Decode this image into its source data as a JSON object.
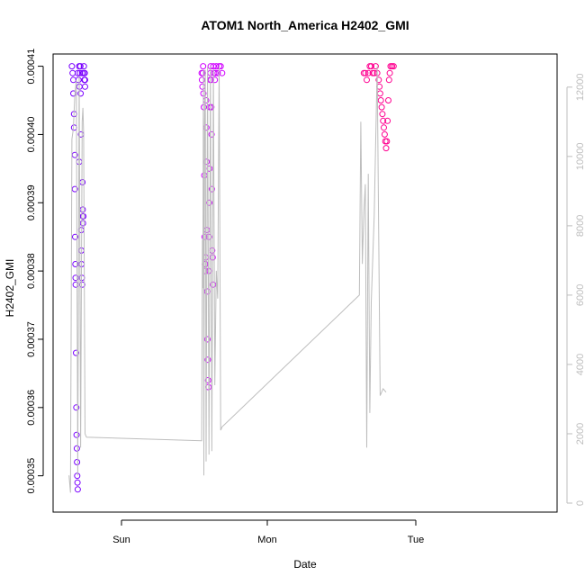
{
  "chart_data": {
    "type": "scatter",
    "title": "ATOM1 North_America H2402_GMI",
    "xlabel": "Date",
    "ylabel": "H2402_GMI",
    "x_ticks": [
      "Sun",
      "Mon",
      "Tue"
    ],
    "y_left": {
      "range": [
        0.000346,
        0.000411
      ],
      "ticks": [
        0.00035,
        0.00036,
        0.00037,
        0.00038,
        0.00039,
        0.0004,
        0.00041
      ],
      "tick_labels": [
        "0.00035",
        "0.00036",
        "0.00037",
        "0.00038",
        "0.00039",
        "0.00040",
        "0.00041"
      ]
    },
    "y_right": {
      "range": [
        0,
        12800
      ],
      "ticks": [
        0,
        2000,
        4000,
        6000,
        8000,
        10000,
        12000
      ],
      "tick_labels": [
        "0",
        "2000",
        "4000",
        "6000",
        "8000",
        "10000",
        "12000"
      ]
    },
    "grid": false,
    "marker_colors": [
      "#7a00ff",
      "#d000ff",
      "#ff0090"
    ],
    "line_color": "#bdbdbd",
    "scatter_points": [
      [
        -0.34,
        0.00041
      ],
      [
        -0.335,
        0.000409
      ],
      [
        -0.33,
        0.000408
      ],
      [
        -0.33,
        0.000406
      ],
      [
        -0.325,
        0.000403
      ],
      [
        -0.325,
        0.000401
      ],
      [
        -0.32,
        0.000397
      ],
      [
        -0.32,
        0.000392
      ],
      [
        -0.318,
        0.000385
      ],
      [
        -0.316,
        0.000381
      ],
      [
        -0.315,
        0.000379
      ],
      [
        -0.314,
        0.000378
      ],
      [
        -0.312,
        0.000368
      ],
      [
        -0.31,
        0.00036
      ],
      [
        -0.308,
        0.000356
      ],
      [
        -0.306,
        0.000354
      ],
      [
        -0.305,
        0.000352
      ],
      [
        -0.304,
        0.00035
      ],
      [
        -0.302,
        0.000349
      ],
      [
        -0.3,
        0.000348
      ],
      [
        -0.3,
        0.000409
      ],
      [
        -0.295,
        0.000408
      ],
      [
        -0.29,
        0.00041
      ],
      [
        -0.29,
        0.000396
      ],
      [
        -0.288,
        0.000407
      ],
      [
        -0.285,
        0.000409
      ],
      [
        -0.282,
        0.00041
      ],
      [
        -0.28,
        0.000406
      ],
      [
        -0.278,
        0.0004
      ],
      [
        -0.276,
        0.000386
      ],
      [
        -0.275,
        0.000383
      ],
      [
        -0.274,
        0.000381
      ],
      [
        -0.272,
        0.000379
      ],
      [
        -0.27,
        0.000378
      ],
      [
        -0.27,
        0.000409
      ],
      [
        -0.268,
        0.000393
      ],
      [
        -0.266,
        0.000389
      ],
      [
        -0.265,
        0.000388
      ],
      [
        -0.264,
        0.000387
      ],
      [
        -0.262,
        0.000388
      ],
      [
        -0.26,
        0.000409
      ],
      [
        -0.258,
        0.00041
      ],
      [
        -0.255,
        0.000408
      ],
      [
        -0.252,
        0.000409
      ],
      [
        -0.25,
        0.000408
      ],
      [
        -0.25,
        0.000407
      ],
      [
        0.55,
        0.000409
      ],
      [
        0.552,
        0.000408
      ],
      [
        0.555,
        0.000407
      ],
      [
        0.558,
        0.000409
      ],
      [
        0.56,
        0.00041
      ],
      [
        0.562,
        0.000406
      ],
      [
        0.565,
        0.000404
      ],
      [
        0.568,
        0.000394
      ],
      [
        0.57,
        0.000385
      ],
      [
        0.572,
        0.000381
      ],
      [
        0.574,
        0.00038
      ],
      [
        0.576,
        0.000381
      ],
      [
        0.578,
        0.000382
      ],
      [
        0.58,
        0.000405
      ],
      [
        0.582,
        0.000401
      ],
      [
        0.584,
        0.000396
      ],
      [
        0.586,
        0.000386
      ],
      [
        0.588,
        0.000377
      ],
      [
        0.59,
        0.00037
      ],
      [
        0.592,
        0.000367
      ],
      [
        0.594,
        0.000364
      ],
      [
        0.596,
        0.000363
      ],
      [
        0.598,
        0.00038
      ],
      [
        0.6,
        0.000385
      ],
      [
        0.602,
        0.00039
      ],
      [
        0.604,
        0.000395
      ],
      [
        0.606,
        0.000404
      ],
      [
        0.608,
        0.000408
      ],
      [
        0.61,
        0.000409
      ],
      [
        0.612,
        0.00041
      ],
      [
        0.614,
        0.000408
      ],
      [
        0.616,
        0.000404
      ],
      [
        0.618,
        0.0004
      ],
      [
        0.62,
        0.000392
      ],
      [
        0.622,
        0.000383
      ],
      [
        0.625,
        0.000382
      ],
      [
        0.628,
        0.000378
      ],
      [
        0.63,
        0.00041
      ],
      [
        0.635,
        0.000409
      ],
      [
        0.64,
        0.000408
      ],
      [
        0.645,
        0.000409
      ],
      [
        0.65,
        0.00041
      ],
      [
        0.66,
        0.000409
      ],
      [
        0.67,
        0.00041
      ],
      [
        0.68,
        0.00041
      ],
      [
        0.69,
        0.000409
      ],
      [
        1.65,
        0.000409
      ],
      [
        1.66,
        0.000409
      ],
      [
        1.67,
        0.000408
      ],
      [
        1.68,
        0.000409
      ],
      [
        1.69,
        0.00041
      ],
      [
        1.7,
        0.00041
      ],
      [
        1.71,
        0.000409
      ],
      [
        1.72,
        0.000409
      ],
      [
        1.73,
        0.00041
      ],
      [
        1.74,
        0.000409
      ],
      [
        1.75,
        0.000408
      ],
      [
        1.755,
        0.000407
      ],
      [
        1.76,
        0.000406
      ],
      [
        1.765,
        0.000405
      ],
      [
        1.77,
        0.000404
      ],
      [
        1.775,
        0.000403
      ],
      [
        1.78,
        0.000402
      ],
      [
        1.785,
        0.000401
      ],
      [
        1.79,
        0.0004
      ],
      [
        1.795,
        0.000399
      ],
      [
        1.8,
        0.000398
      ],
      [
        1.805,
        0.000399
      ],
      [
        1.81,
        0.000402
      ],
      [
        1.815,
        0.000405
      ],
      [
        1.82,
        0.000408
      ],
      [
        1.825,
        0.000409
      ],
      [
        1.83,
        0.00041
      ],
      [
        1.84,
        0.00041
      ],
      [
        1.85,
        0.00041
      ]
    ],
    "line_points": [
      [
        -0.36,
        800
      ],
      [
        -0.35,
        300
      ],
      [
        -0.34,
        10500
      ],
      [
        -0.33,
        10800
      ],
      [
        -0.32,
        11800
      ],
      [
        -0.31,
        12200
      ],
      [
        -0.3,
        800
      ],
      [
        -0.29,
        12300
      ],
      [
        -0.28,
        1600
      ],
      [
        -0.27,
        11000
      ],
      [
        -0.265,
        11400
      ],
      [
        -0.26,
        10700
      ],
      [
        -0.25,
        2000
      ],
      [
        -0.24,
        1900
      ],
      [
        0.55,
        1800
      ],
      [
        0.555,
        7600
      ],
      [
        0.558,
        6200
      ],
      [
        0.562,
        12500
      ],
      [
        0.565,
        800
      ],
      [
        0.57,
        11000
      ],
      [
        0.575,
        12500
      ],
      [
        0.58,
        1200
      ],
      [
        0.59,
        12600
      ],
      [
        0.6,
        1400
      ],
      [
        0.61,
        12600
      ],
      [
        0.62,
        1500
      ],
      [
        0.63,
        12500
      ],
      [
        0.64,
        3400
      ],
      [
        0.65,
        6700
      ],
      [
        0.66,
        5900
      ],
      [
        0.67,
        12600
      ],
      [
        0.68,
        2100
      ],
      [
        0.69,
        2200
      ],
      [
        1.62,
        6000
      ],
      [
        1.63,
        11000
      ],
      [
        1.64,
        6900
      ],
      [
        1.65,
        8400
      ],
      [
        1.66,
        9200
      ],
      [
        1.67,
        1600
      ],
      [
        1.68,
        9500
      ],
      [
        1.69,
        2600
      ],
      [
        1.7,
        5800
      ],
      [
        1.72,
        8300
      ],
      [
        1.74,
        12600
      ],
      [
        1.76,
        3100
      ],
      [
        1.78,
        3300
      ],
      [
        1.8,
        3200
      ]
    ]
  }
}
